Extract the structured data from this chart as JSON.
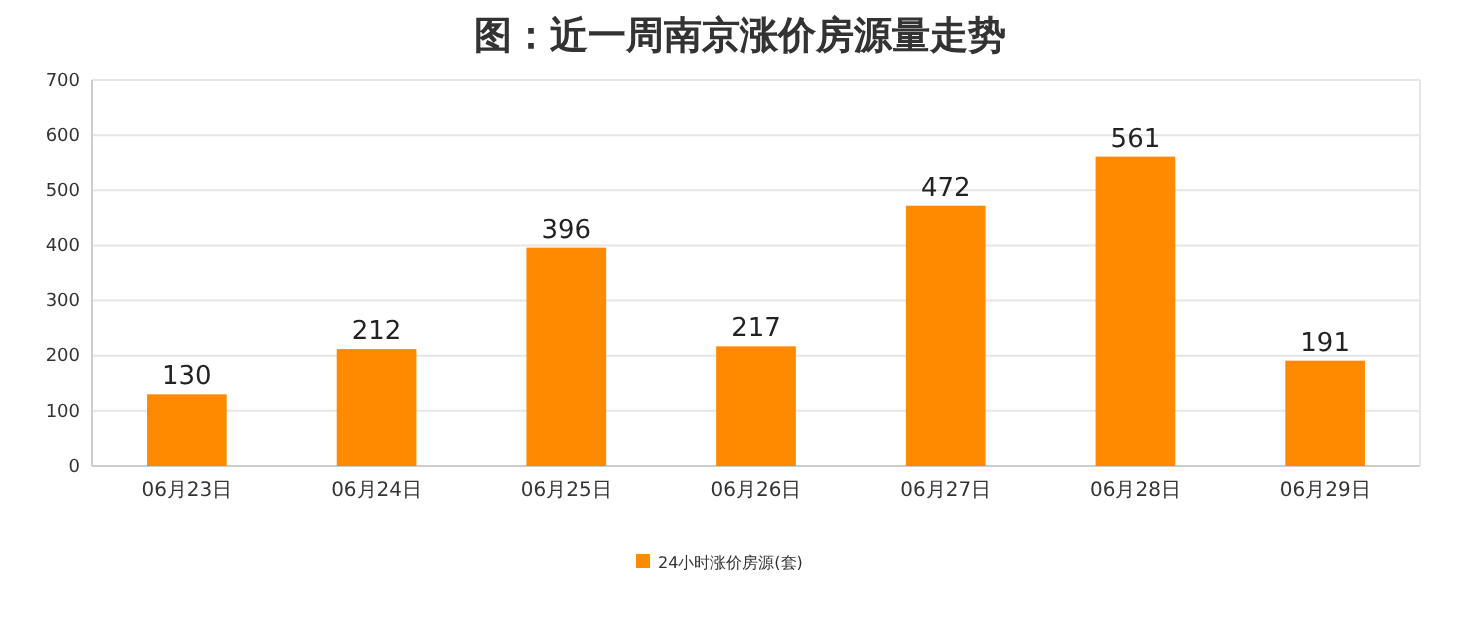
{
  "chart_data": {
    "type": "bar",
    "title": "图：近一周南京涨价房源量走势",
    "categories": [
      "06月23日",
      "06月24日",
      "06月25日",
      "06月26日",
      "06月27日",
      "06月28日",
      "06月29日"
    ],
    "series": [
      {
        "name": "24小时涨价房源(套)",
        "color": "#ff8a00",
        "values": [
          130,
          212,
          396,
          217,
          472,
          561,
          191
        ]
      }
    ],
    "ylim": [
      0,
      700
    ],
    "yticks": [
      0,
      100,
      200,
      300,
      400,
      500,
      600,
      700
    ],
    "grid": "y",
    "legend": "bottom",
    "data_labels": true
  }
}
